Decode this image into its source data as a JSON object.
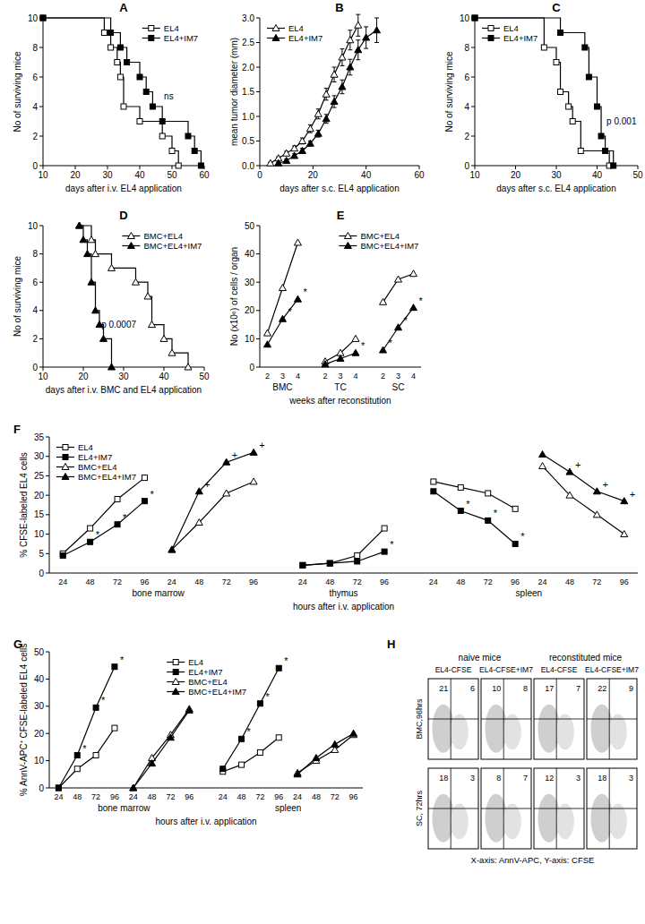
{
  "chart_data": [
    {
      "label": "A",
      "type": "step",
      "xlabel": "days after i.v. EL4 application",
      "ylabel": "No of surviving mice",
      "xlim": [
        10,
        60
      ],
      "xticks": [
        10,
        20,
        30,
        40,
        50,
        60
      ],
      "ylim": [
        0,
        10
      ],
      "yticks": [
        0,
        2,
        4,
        6,
        8,
        10
      ],
      "legend": "top-right",
      "annotation": "ns",
      "series": [
        {
          "name": "EL4",
          "marker": "open-square",
          "color": "#000000",
          "x": [
            10,
            29,
            31,
            33,
            34,
            35,
            40,
            47,
            50,
            52
          ],
          "values": [
            10,
            9,
            8,
            7,
            6,
            4,
            3,
            2,
            1,
            0
          ]
        },
        {
          "name": "EL4+IM7",
          "marker": "filled-square",
          "color": "#000000",
          "x": [
            10,
            31,
            34,
            36,
            40,
            42,
            44,
            47,
            55,
            57,
            59
          ],
          "values": [
            10,
            9,
            8,
            7,
            6,
            5,
            4,
            3,
            2,
            1,
            0
          ]
        }
      ]
    },
    {
      "label": "B",
      "type": "line",
      "xlabel": "days after s.c. EL4 application",
      "ylabel": "mean tumor diameter (mm)",
      "xlim": [
        0,
        60
      ],
      "xticks": [
        0,
        20,
        40,
        60
      ],
      "ylim": [
        0,
        3
      ],
      "yticks": [
        {
          "value": 0,
          "label": "0.0"
        },
        0.5,
        {
          "value": 1,
          "label": "1.0"
        },
        1.5,
        {
          "value": 2,
          "label": "2.0"
        },
        2.5,
        {
          "value": 3,
          "label": "3.0"
        }
      ],
      "legend": "top-left",
      "series": [
        {
          "name": "EL4",
          "marker": "open-triangle",
          "color": "#000000",
          "x": [
            4,
            7,
            10,
            13,
            16,
            19,
            22,
            25,
            28,
            31,
            34,
            37
          ],
          "values": [
            0.05,
            0.15,
            0.25,
            0.35,
            0.5,
            0.75,
            1.05,
            1.45,
            1.85,
            2.2,
            2.55,
            2.85
          ],
          "errors": [
            0.02,
            0.03,
            0.04,
            0.05,
            0.06,
            0.08,
            0.1,
            0.12,
            0.15,
            0.17,
            0.2,
            0.22
          ]
        },
        {
          "name": "EL4+IM7",
          "marker": "filled-triangle",
          "color": "#000000",
          "x": [
            7,
            10,
            13,
            16,
            19,
            22,
            25,
            28,
            31,
            34,
            37,
            40,
            44
          ],
          "values": [
            0.05,
            0.1,
            0.2,
            0.3,
            0.45,
            0.65,
            0.95,
            1.3,
            1.6,
            2.0,
            2.35,
            2.6,
            2.75
          ],
          "errors": [
            0.02,
            0.03,
            0.04,
            0.05,
            0.05,
            0.07,
            0.09,
            0.12,
            0.14,
            0.16,
            0.2,
            0.22,
            0.25
          ]
        }
      ]
    },
    {
      "label": "C",
      "type": "step",
      "xlabel": "days after s.c. EL4 application",
      "ylabel": "No of surviving mice",
      "xlim": [
        10,
        50
      ],
      "xticks": [
        10,
        20,
        30,
        40,
        50
      ],
      "ylim": [
        0,
        10
      ],
      "yticks": [
        0,
        2,
        4,
        6,
        8,
        10
      ],
      "legend": "top-left",
      "annotation": "p 0.001",
      "series": [
        {
          "name": "EL4",
          "marker": "open-square",
          "color": "#000000",
          "x": [
            10,
            27,
            30,
            31,
            33,
            34,
            36,
            43
          ],
          "values": [
            10,
            8,
            7,
            5,
            4,
            3,
            1,
            0
          ]
        },
        {
          "name": "EL4+IM7",
          "marker": "filled-square",
          "color": "#000000",
          "x": [
            10,
            31,
            37,
            38,
            40,
            41,
            42,
            44
          ],
          "values": [
            10,
            9,
            8,
            6,
            4,
            2,
            1,
            0
          ]
        }
      ]
    },
    {
      "label": "D",
      "type": "step",
      "xlabel": "days after i.v. BMC and EL4 application",
      "ylabel": "No of surviving mice",
      "xlim": [
        10,
        50
      ],
      "xticks": [
        10,
        20,
        30,
        40,
        50
      ],
      "ylim": [
        0,
        10
      ],
      "yticks": [
        0,
        2,
        4,
        6,
        8,
        10
      ],
      "legend": "top-right",
      "annotation": "p 0.0007",
      "series": [
        {
          "name": "BMC+EL4",
          "marker": "open-triangle",
          "color": "#000000",
          "x": [
            19,
            22,
            23,
            27,
            33,
            36,
            37,
            40,
            42,
            46
          ],
          "values": [
            10,
            9,
            8,
            7,
            6,
            5,
            3,
            2,
            1,
            0
          ]
        },
        {
          "name": "BMC+EL4+IM7",
          "marker": "filled-triangle",
          "color": "#000000",
          "x": [
            19,
            20,
            21,
            22,
            23,
            24,
            25,
            27
          ],
          "values": [
            10,
            9,
            8,
            6,
            4,
            3,
            2,
            0
          ]
        }
      ]
    },
    {
      "label": "E",
      "type": "category_line",
      "xlabel": "weeks after reconstitution",
      "ylabel": "No (x10⁶) of cells / organ",
      "categories": [
        2,
        3,
        4,
        2,
        3,
        4,
        2,
        3,
        4
      ],
      "groups": [
        {
          "label": "BMC",
          "size": 3
        },
        {
          "label": "TC",
          "size": 3
        },
        {
          "label": "SC",
          "size": 3
        }
      ],
      "ylim": [
        0,
        50
      ],
      "yticks": [
        0,
        10,
        20,
        30,
        40,
        50
      ],
      "legend": "top-right",
      "series": [
        {
          "name": "BMC+EL4",
          "marker": "open-triangle",
          "color": "#000000",
          "values": [
            12,
            28,
            44,
            2,
            5,
            10,
            23,
            31,
            33
          ]
        },
        {
          "name": "BMC+EL4+IM7",
          "marker": "filled-triangle",
          "color": "#000000",
          "values": [
            8,
            17,
            24,
            1,
            3,
            5,
            6,
            14,
            21
          ],
          "annotations": [
            null,
            "*",
            "*",
            null,
            null,
            "*",
            "*",
            "*",
            "*"
          ]
        }
      ]
    },
    {
      "label": "F",
      "type": "category_line",
      "xlabel": "hours after i.v. application",
      "ylabel": "% CFSE-labeled EL4 cells",
      "categories": [
        24,
        48,
        72,
        96,
        24,
        48,
        72,
        96,
        24,
        48,
        72,
        96,
        24,
        48,
        72,
        96,
        24,
        48,
        72,
        96
      ],
      "groups": [
        {
          "label": "bone marrow",
          "size": 8
        },
        {
          "label": "thymus",
          "size": 4
        },
        {
          "label": "spleen",
          "size": 8
        }
      ],
      "ylim": [
        0,
        35
      ],
      "yticks": [
        0,
        5,
        10,
        15,
        20,
        25,
        30,
        35
      ],
      "legend": "top-left",
      "series": [
        {
          "name": "EL4",
          "marker": "open-square",
          "color": "#000000",
          "values": [
            5,
            11.5,
            19,
            24.5,
            null,
            null,
            null,
            null,
            2,
            2.5,
            4.5,
            11.5,
            23.5,
            22,
            20.5,
            16.5,
            null,
            null,
            null,
            null
          ]
        },
        {
          "name": "EL4+IM7",
          "marker": "filled-square",
          "color": "#000000",
          "values": [
            4.5,
            8,
            12.5,
            18.5,
            null,
            null,
            null,
            null,
            2,
            2.5,
            3,
            5.5,
            21,
            16,
            13.5,
            7.5,
            null,
            null,
            null,
            null
          ],
          "annotations": [
            null,
            "*",
            "*",
            "*",
            null,
            null,
            null,
            null,
            null,
            null,
            null,
            "*",
            null,
            "*",
            "*",
            "*",
            null,
            null,
            null,
            null
          ]
        },
        {
          "name": "BMC+EL4",
          "marker": "open-triangle",
          "color": "#000000",
          "values": [
            null,
            null,
            null,
            null,
            6,
            13,
            20.5,
            23.5,
            null,
            null,
            null,
            null,
            null,
            null,
            null,
            null,
            27.5,
            20,
            15,
            10
          ]
        },
        {
          "name": "BMC+EL4+IM7",
          "marker": "filled-triangle",
          "color": "#000000",
          "values": [
            null,
            null,
            null,
            null,
            6,
            21,
            28.5,
            31,
            null,
            null,
            null,
            null,
            null,
            null,
            null,
            null,
            30.5,
            26,
            21,
            18.5
          ],
          "annotations": [
            null,
            null,
            null,
            null,
            null,
            "+",
            "+",
            "+",
            null,
            null,
            null,
            null,
            null,
            null,
            null,
            null,
            null,
            "+",
            "+",
            "+"
          ]
        }
      ]
    },
    {
      "label": "G",
      "type": "category_line",
      "xlabel": "hours after i.v. application",
      "ylabel": "% AnnV-APC⁺ CFSE-labeled EL4 cells",
      "categories": [
        24,
        48,
        72,
        96,
        24,
        48,
        72,
        96,
        24,
        48,
        72,
        96,
        24,
        48,
        72,
        96
      ],
      "groups": [
        {
          "label": "bone marrow",
          "size": 8
        },
        {
          "label": "spleen",
          "size": 8
        }
      ],
      "ylim": [
        0,
        50
      ],
      "yticks": [
        0,
        10,
        20,
        30,
        40,
        50
      ],
      "legend": "top",
      "series": [
        {
          "name": "EL4",
          "marker": "open-square",
          "color": "#000000",
          "values": [
            0,
            7,
            12,
            22,
            null,
            null,
            null,
            null,
            6,
            8.5,
            13,
            18.5,
            null,
            null,
            null,
            null
          ]
        },
        {
          "name": "EL4+IM7",
          "marker": "filled-square",
          "color": "#000000",
          "values": [
            0,
            12,
            29.5,
            44.5,
            null,
            null,
            null,
            null,
            7,
            18,
            31,
            44,
            null,
            null,
            null,
            null
          ],
          "annotations": [
            null,
            "*",
            "*",
            "*",
            null,
            null,
            null,
            null,
            null,
            "*",
            "*",
            "*",
            null,
            null,
            null,
            null
          ]
        },
        {
          "name": "BMC+EL4",
          "marker": "open-triangle",
          "color": "#000000",
          "values": [
            null,
            null,
            null,
            null,
            0,
            11,
            19.5,
            29,
            null,
            null,
            null,
            null,
            5.5,
            10,
            14,
            19.5
          ]
        },
        {
          "name": "BMC+EL4+IM7",
          "marker": "filled-triangle",
          "color": "#000000",
          "values": [
            null,
            null,
            null,
            null,
            0,
            9,
            18.5,
            28.5,
            null,
            null,
            null,
            null,
            5,
            11,
            16,
            20
          ]
        }
      ]
    }
  ],
  "flow_plots": {
    "label": "H",
    "column_groups": [
      {
        "title": "naive mice",
        "columns": [
          "EL4-CFSE",
          "EL4-CFSE+IM7"
        ]
      },
      {
        "title": "reconstituted mice",
        "columns": [
          "EL4-CFSE",
          "EL4-CFSE+IM7"
        ]
      }
    ],
    "rows": [
      {
        "label": "BMC,96hrs",
        "quadrants": [
          [
            21,
            6
          ],
          [
            10,
            8
          ],
          [
            17,
            7
          ],
          [
            22,
            9
          ]
        ]
      },
      {
        "label": "SC, 72hrs",
        "quadrants": [
          [
            18,
            3
          ],
          [
            8,
            7
          ],
          [
            12,
            3
          ],
          [
            18,
            3
          ]
        ]
      }
    ],
    "axis_note": "X-axis: AnnV-APC, Y-axis: CFSE"
  }
}
